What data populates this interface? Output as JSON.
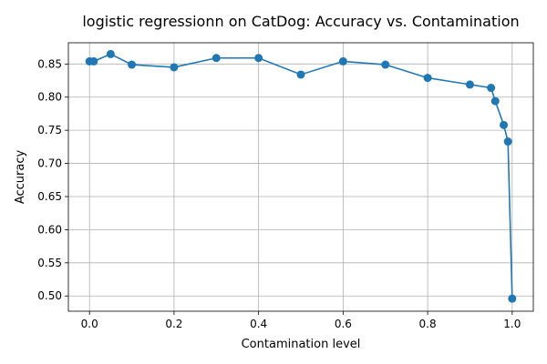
{
  "chart_data": {
    "type": "line",
    "title": "logistic regressionn on CatDog: Accuracy vs. Contamination",
    "xlabel": "Contamination level",
    "ylabel": "Accuracy",
    "xlim": [
      -0.05,
      1.05
    ],
    "ylim": [
      0.477,
      0.882
    ],
    "xticks": [
      0.0,
      0.2,
      0.4,
      0.6,
      0.8,
      1.0
    ],
    "xtick_labels": [
      "0.0",
      "0.2",
      "0.4",
      "0.6",
      "0.8",
      "1.0"
    ],
    "yticks": [
      0.5,
      0.55,
      0.6,
      0.65,
      0.7,
      0.75,
      0.8,
      0.85
    ],
    "ytick_labels": [
      "0.50",
      "0.55",
      "0.60",
      "0.65",
      "0.70",
      "0.75",
      "0.80",
      "0.85"
    ],
    "grid": true,
    "legend": "none",
    "color": "#1f77b4",
    "series": [
      {
        "x": [
          0.0,
          0.01,
          0.05,
          0.1,
          0.2,
          0.3,
          0.4,
          0.5,
          0.6,
          0.7,
          0.8,
          0.9,
          0.95,
          0.96,
          0.98,
          0.99,
          1.0
        ],
        "y": [
          0.854,
          0.854,
          0.865,
          0.849,
          0.845,
          0.859,
          0.859,
          0.834,
          0.854,
          0.849,
          0.829,
          0.819,
          0.814,
          0.794,
          0.758,
          0.733,
          0.496
        ]
      }
    ]
  }
}
